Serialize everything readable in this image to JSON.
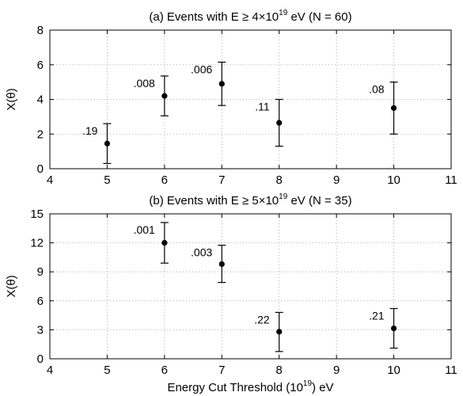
{
  "chart_data": [
    {
      "type": "scatter",
      "panel_label": "(a)",
      "title": "(a)  Events  with  E ≥ 4×10¹⁹  eV  (N = 60)",
      "title_parts": {
        "prefix": "(a)  Events  with  E ≥ 4×10",
        "sup": "19",
        "suffix": "  eV  (N = 60)"
      },
      "xlabel": "",
      "ylabel": "X(θ)",
      "xlim": [
        4,
        11
      ],
      "ylim": [
        0,
        8
      ],
      "xticks": [
        4,
        5,
        6,
        7,
        8,
        9,
        10,
        11
      ],
      "yticks": [
        0,
        2,
        4,
        6,
        8
      ],
      "grid": true,
      "points": [
        {
          "x": 5,
          "y": 1.45,
          "err_low": 0.3,
          "err_high": 2.6,
          "label": ".19"
        },
        {
          "x": 6,
          "y": 4.2,
          "err_low": 3.05,
          "err_high": 5.35,
          "label": ".008"
        },
        {
          "x": 7,
          "y": 4.9,
          "err_low": 3.65,
          "err_high": 6.15,
          "label": ".006"
        },
        {
          "x": 8,
          "y": 2.65,
          "err_low": 1.3,
          "err_high": 4.0,
          "label": ".11"
        },
        {
          "x": 10,
          "y": 3.5,
          "err_low": 2.0,
          "err_high": 5.0,
          "label": ".08"
        }
      ]
    },
    {
      "type": "scatter",
      "panel_label": "(b)",
      "title": "(b)  Events  with  E ≥ 5×10¹⁹  eV  (N = 35)",
      "title_parts": {
        "prefix": "(b)  Events  with  E ≥ 5×10",
        "sup": "19",
        "suffix": "  eV  (N = 35)"
      },
      "xlabel": "Energy  Cut  Threshold  (10¹⁹) eV",
      "xlabel_parts": {
        "prefix": "Energy  Cut  Threshold  (10",
        "sup": "19",
        "suffix": ") eV"
      },
      "ylabel": "X(θ)",
      "xlim": [
        4,
        11
      ],
      "ylim": [
        0,
        15
      ],
      "xticks": [
        4,
        5,
        6,
        7,
        8,
        9,
        10,
        11
      ],
      "yticks": [
        0,
        3,
        6,
        9,
        12,
        15
      ],
      "grid": true,
      "points": [
        {
          "x": 6,
          "y": 12.0,
          "err_low": 9.9,
          "err_high": 14.1,
          "label": ".001"
        },
        {
          "x": 7,
          "y": 9.8,
          "err_low": 7.9,
          "err_high": 11.75,
          "label": ".003"
        },
        {
          "x": 8,
          "y": 2.8,
          "err_low": 0.75,
          "err_high": 4.8,
          "label": ".22"
        },
        {
          "x": 10,
          "y": 3.15,
          "err_low": 1.1,
          "err_high": 5.2,
          "label": ".21"
        }
      ]
    }
  ]
}
